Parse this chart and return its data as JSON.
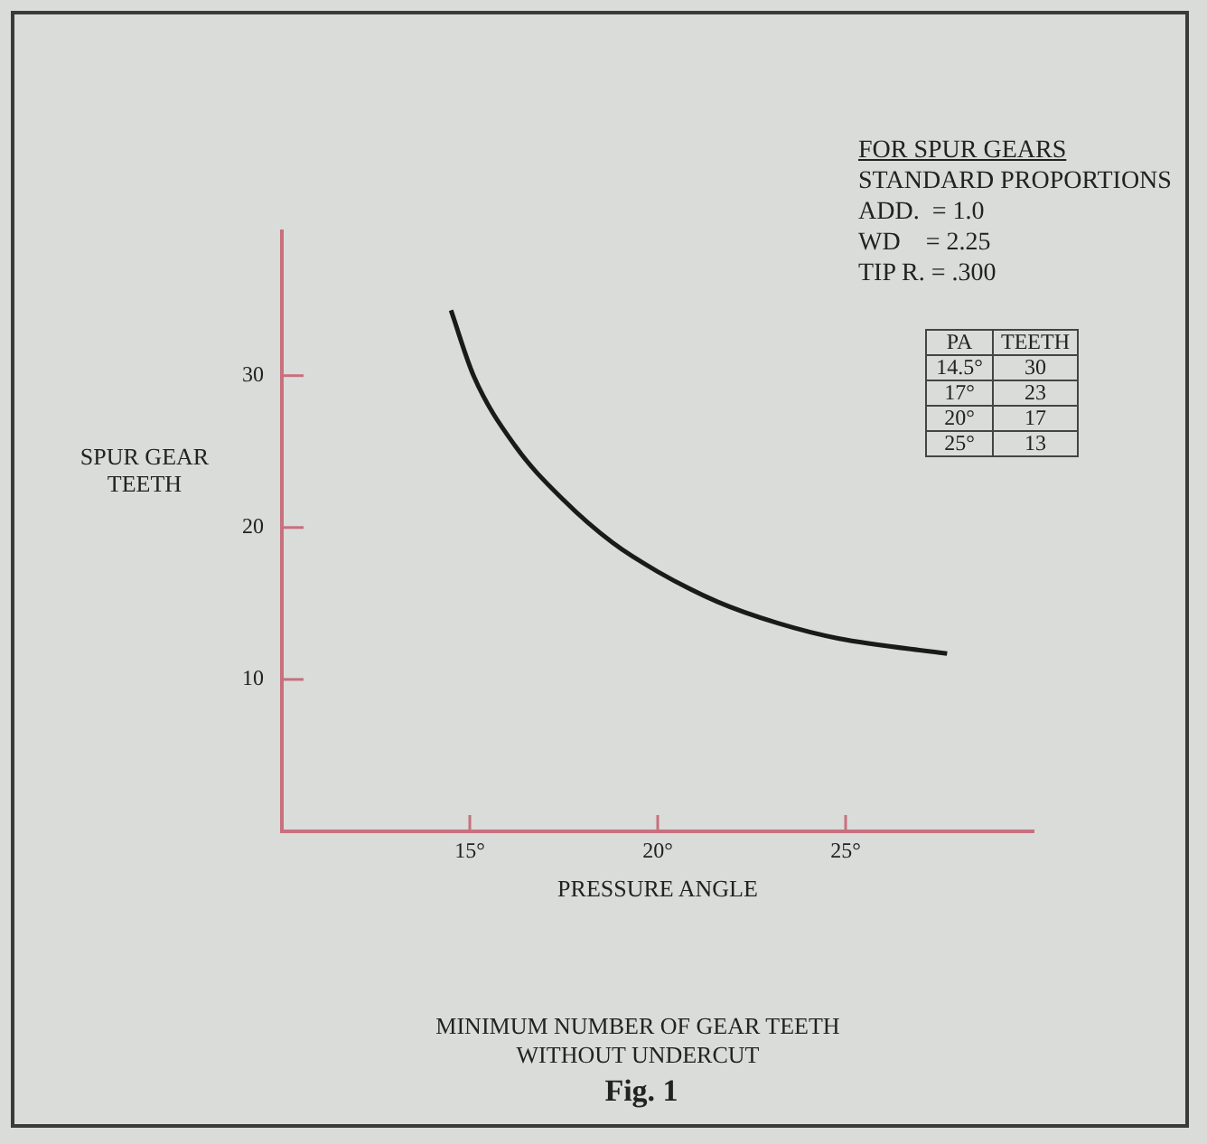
{
  "chart_data": {
    "type": "line",
    "title": "MINIMUM NUMBER OF GEAR TEETH WITHOUT UNDERCUT",
    "xlabel": "PRESSURE ANGLE",
    "ylabel": "SPUR GEAR TEETH",
    "x": [
      14.5,
      15.1,
      16.2,
      17.5,
      18.8,
      20.0,
      21.6,
      23.2,
      24.8,
      27.7
    ],
    "series": [
      {
        "color": "#1a1a1a",
        "values": [
          34.3,
          30.0,
          25.4,
          21.8,
          19.0,
          17.1,
          15.1,
          13.7,
          12.7,
          11.7
        ]
      }
    ],
    "xlim": [
      10,
      30
    ],
    "xticks": [
      {
        "value": 15,
        "label": "15°"
      },
      {
        "value": 20,
        "label": "20°"
      },
      {
        "value": 25,
        "label": "25°"
      }
    ],
    "ylim": [
      0,
      39.5
    ],
    "yticks": [
      10,
      20,
      30
    ],
    "grid": false,
    "legend": false,
    "marker": "none",
    "line_style": "solid",
    "annotations": [
      "FOR SPUR GEARS",
      "STANDARD PROPORTIONS",
      "ADD.  = 1.0",
      "WD    = 2.25",
      "TIP R. = .300",
      "PA",
      "TEETH",
      "14.5°",
      "30",
      "17°",
      "23",
      "20°",
      "17",
      "25°",
      "13",
      "Fig. 1"
    ]
  }
}
